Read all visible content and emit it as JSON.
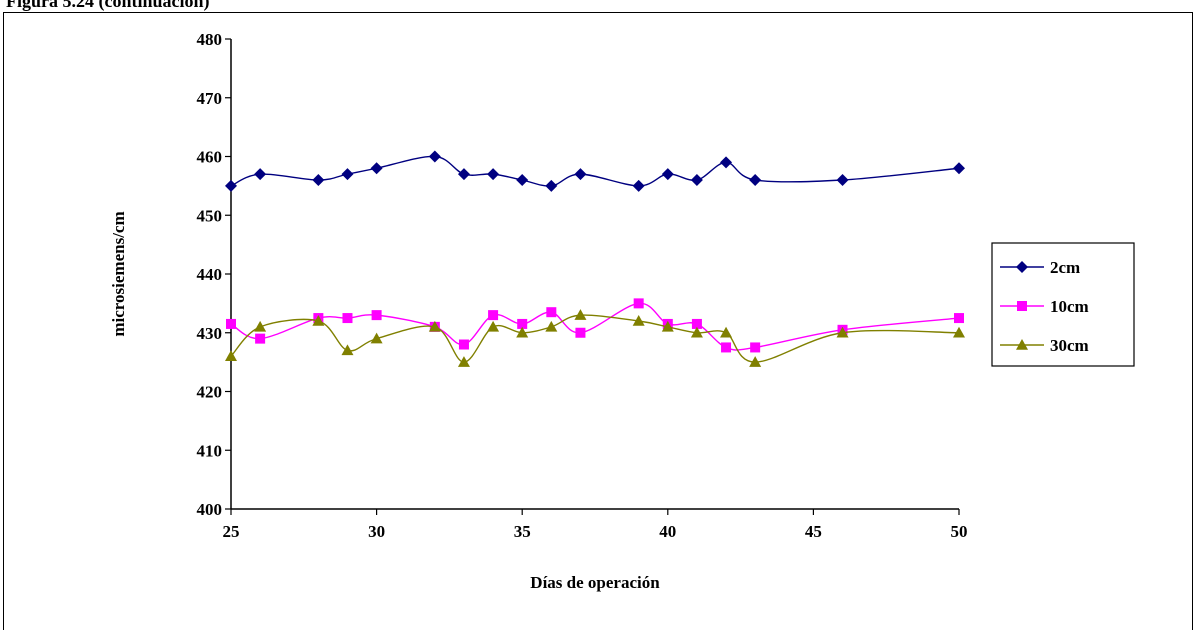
{
  "page": {
    "title_fragment": "Figura 5.24 (continuación)"
  },
  "colors": {
    "series_2cm": "#000080",
    "series_10cm": "#FF00FF",
    "series_30cm": "#808000",
    "axis": "#000000"
  },
  "chart_data": {
    "type": "line",
    "title": "",
    "xlabel": "Días de operación",
    "ylabel": "microsiemens/cm",
    "xlim": [
      25,
      50
    ],
    "ylim": [
      400,
      480
    ],
    "x_ticks": [
      "25",
      "30",
      "35",
      "40",
      "45",
      "50"
    ],
    "y_ticks": [
      "400",
      "410",
      "420",
      "430",
      "440",
      "450",
      "460",
      "470",
      "480"
    ],
    "grid": false,
    "smooth": true,
    "legend_position": "right",
    "series": [
      {
        "name": "2cm",
        "marker": "diamond",
        "points": [
          [
            25,
            455
          ],
          [
            26,
            457
          ],
          [
            28,
            456
          ],
          [
            29,
            457
          ],
          [
            30,
            458
          ],
          [
            32,
            460
          ],
          [
            33,
            457
          ],
          [
            34,
            457
          ],
          [
            35,
            456
          ],
          [
            36,
            455
          ],
          [
            37,
            457
          ],
          [
            39,
            455
          ],
          [
            40,
            457
          ],
          [
            41,
            456
          ],
          [
            42,
            459
          ],
          [
            43,
            456
          ],
          [
            46,
            456
          ],
          [
            50,
            458
          ]
        ]
      },
      {
        "name": "10cm",
        "marker": "square",
        "points": [
          [
            25,
            431.5
          ],
          [
            26,
            429
          ],
          [
            28,
            432.5
          ],
          [
            29,
            432.5
          ],
          [
            30,
            433
          ],
          [
            32,
            431
          ],
          [
            33,
            428
          ],
          [
            34,
            433
          ],
          [
            35,
            431.5
          ],
          [
            36,
            433.5
          ],
          [
            37,
            430
          ],
          [
            39,
            435
          ],
          [
            40,
            431.5
          ],
          [
            41,
            431.5
          ],
          [
            42,
            427.5
          ],
          [
            43,
            427.5
          ],
          [
            46,
            430.5
          ],
          [
            50,
            432.5
          ]
        ]
      },
      {
        "name": "30cm",
        "marker": "triangle",
        "points": [
          [
            25,
            426
          ],
          [
            26,
            431
          ],
          [
            28,
            432
          ],
          [
            29,
            427
          ],
          [
            30,
            429
          ],
          [
            32,
            431
          ],
          [
            33,
            425
          ],
          [
            34,
            431
          ],
          [
            35,
            430
          ],
          [
            36,
            431
          ],
          [
            37,
            433
          ],
          [
            39,
            432
          ],
          [
            40,
            431
          ],
          [
            41,
            430
          ],
          [
            42,
            430
          ],
          [
            43,
            425
          ],
          [
            46,
            430
          ],
          [
            50,
            430
          ]
        ]
      }
    ]
  }
}
